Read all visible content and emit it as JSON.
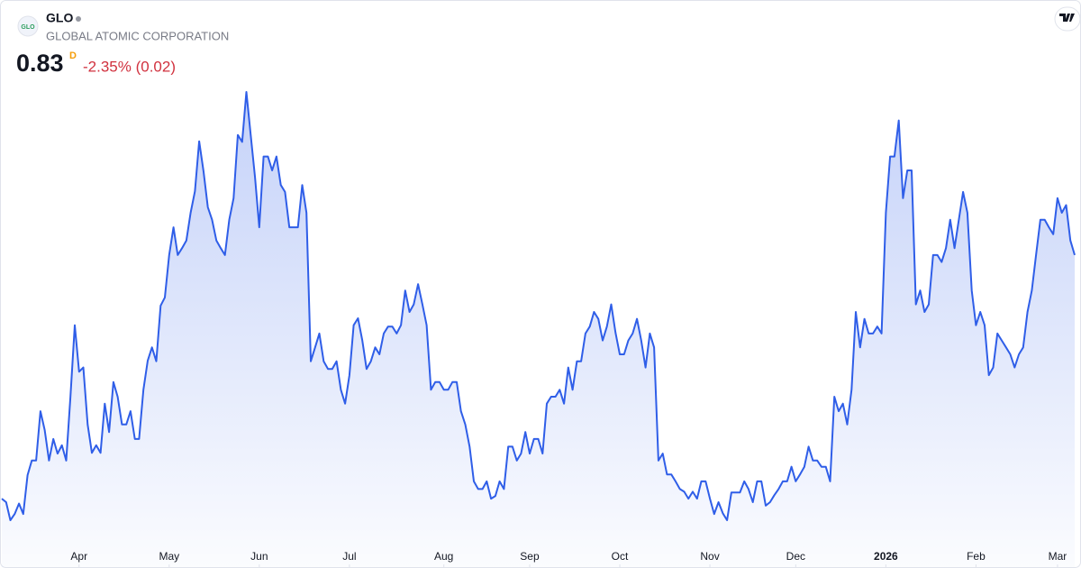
{
  "header": {
    "symbol": "GLO",
    "name": "GLOBAL ATOMIC CORPORATION",
    "price": 0.83,
    "interval": "D",
    "change": "-2.35% (0.02)"
  },
  "chart_data": {
    "type": "area",
    "color": "#2f5ee8",
    "values": [
      0.479,
      0.474,
      0.448,
      0.457,
      0.472,
      0.457,
      0.513,
      0.534,
      0.534,
      0.605,
      0.578,
      0.534,
      0.565,
      0.544,
      0.556,
      0.534,
      0.626,
      0.729,
      0.662,
      0.668,
      0.586,
      0.545,
      0.556,
      0.545,
      0.616,
      0.575,
      0.647,
      0.626,
      0.586,
      0.586,
      0.605,
      0.565,
      0.565,
      0.636,
      0.678,
      0.697,
      0.677,
      0.757,
      0.769,
      0.83,
      0.87,
      0.83,
      0.84,
      0.851,
      0.891,
      0.922,
      0.994,
      0.951,
      0.899,
      0.881,
      0.851,
      0.84,
      0.83,
      0.881,
      0.912,
      1.003,
      0.993,
      1.065,
      1.003,
      0.942,
      0.87,
      0.972,
      0.972,
      0.952,
      0.972,
      0.931,
      0.921,
      0.87,
      0.87,
      0.87,
      0.931,
      0.891,
      0.677,
      0.697,
      0.717,
      0.677,
      0.666,
      0.666,
      0.677,
      0.636,
      0.616,
      0.657,
      0.729,
      0.739,
      0.707,
      0.666,
      0.677,
      0.697,
      0.687,
      0.717,
      0.727,
      0.727,
      0.717,
      0.729,
      0.779,
      0.748,
      0.759,
      0.788,
      0.759,
      0.729,
      0.636,
      0.647,
      0.647,
      0.636,
      0.636,
      0.647,
      0.647,
      0.605,
      0.586,
      0.554,
      0.504,
      0.493,
      0.493,
      0.504,
      0.479,
      0.483,
      0.504,
      0.493,
      0.554,
      0.554,
      0.534,
      0.544,
      0.575,
      0.544,
      0.565,
      0.565,
      0.544,
      0.616,
      0.626,
      0.626,
      0.636,
      0.616,
      0.668,
      0.636,
      0.677,
      0.677,
      0.717,
      0.727,
      0.748,
      0.738,
      0.707,
      0.727,
      0.759,
      0.718,
      0.687,
      0.687,
      0.707,
      0.717,
      0.738,
      0.707,
      0.668,
      0.717,
      0.697,
      0.534,
      0.544,
      0.514,
      0.514,
      0.504,
      0.493,
      0.489,
      0.479,
      0.489,
      0.479,
      0.504,
      0.504,
      0.479,
      0.457,
      0.474,
      0.458,
      0.448,
      0.488,
      0.488,
      0.488,
      0.504,
      0.493,
      0.474,
      0.504,
      0.504,
      0.469,
      0.474,
      0.484,
      0.493,
      0.504,
      0.504,
      0.525,
      0.504,
      0.514,
      0.525,
      0.554,
      0.534,
      0.534,
      0.525,
      0.525,
      0.504,
      0.626,
      0.605,
      0.616,
      0.586,
      0.636,
      0.748,
      0.697,
      0.738,
      0.717,
      0.717,
      0.727,
      0.717,
      0.891,
      0.972,
      0.972,
      1.024,
      0.912,
      0.952,
      0.952,
      0.759,
      0.779,
      0.748,
      0.759,
      0.83,
      0.83,
      0.82,
      0.84,
      0.881,
      0.84,
      0.881,
      0.921,
      0.891,
      0.779,
      0.729,
      0.748,
      0.729,
      0.657,
      0.668,
      0.717,
      0.707,
      0.697,
      0.687,
      0.668,
      0.687,
      0.697,
      0.748,
      0.779,
      0.83,
      0.881,
      0.881,
      0.87,
      0.86,
      0.912,
      0.891,
      0.902,
      0.851,
      0.83
    ],
    "xticks": [
      {
        "value": 18,
        "label": "Apr"
      },
      {
        "value": 39,
        "label": "May"
      },
      {
        "value": 60,
        "label": "Jun"
      },
      {
        "value": 81,
        "label": "Jul"
      },
      {
        "value": 103,
        "label": "Aug"
      },
      {
        "value": 123,
        "label": "Sep"
      },
      {
        "value": 144,
        "label": "Oct"
      },
      {
        "value": 165,
        "label": "Nov"
      },
      {
        "value": 185,
        "label": "Dec"
      },
      {
        "value": 206,
        "label": "2026"
      },
      {
        "value": 227,
        "label": "Feb"
      },
      {
        "value": 246,
        "label": "Mar"
      }
    ]
  }
}
